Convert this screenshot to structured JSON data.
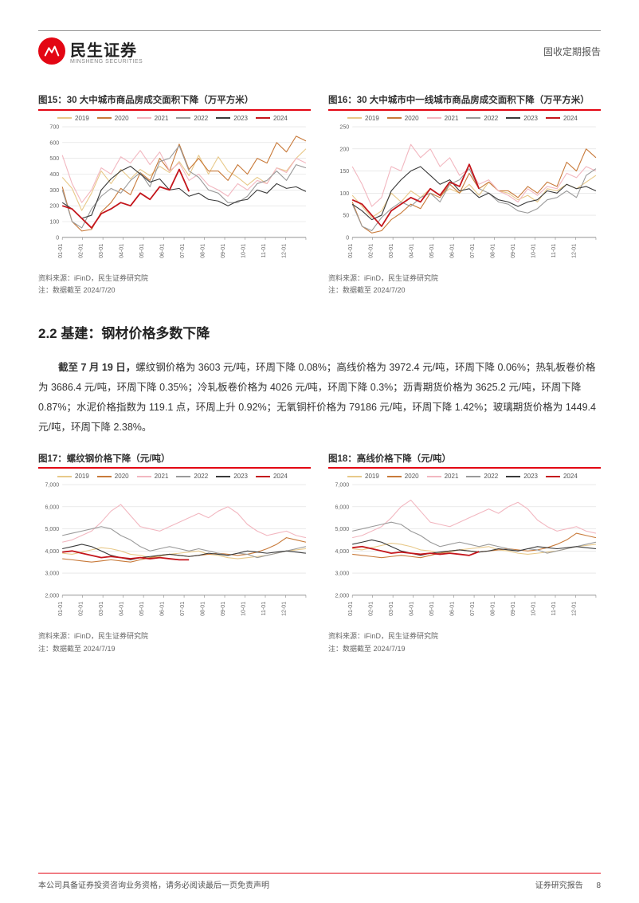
{
  "header": {
    "brand_cn": "民生证券",
    "brand_en": "MINSHENG SECURITIES",
    "doc_type": "固收定期报告"
  },
  "series_meta": {
    "years": [
      "2019",
      "2020",
      "2021",
      "2022",
      "2023",
      "2024"
    ],
    "colors": {
      "2019": "#e8c98a",
      "2020": "#c87a3a",
      "2021": "#f2b7c0",
      "2022": "#9a9a9a",
      "2023": "#3a3a3a",
      "2024": "#c4161c"
    }
  },
  "chart15": {
    "title": "图15：30 大中城市商品房成交面积下降（万平方米）",
    "type": "line",
    "source": "资料来源：iFinD，民生证券研究院",
    "note": "注：数据截至 2024/7/20",
    "ylim": [
      0,
      700
    ],
    "ytick_step": 100,
    "x_labels": [
      "01-01",
      "02-01",
      "03-01",
      "04-01",
      "05-01",
      "06-01",
      "07-01",
      "08-01",
      "09-01",
      "10-01",
      "11-01",
      "12-01",
      ""
    ],
    "grid_color": "#dddddd",
    "axis_color": "#888888",
    "label_fontsize": 7,
    "data": {
      "2019": [
        380,
        310,
        170,
        280,
        420,
        340,
        430,
        370,
        430,
        390,
        450,
        410,
        480,
        390,
        520,
        400,
        510,
        420,
        380,
        330,
        380,
        340,
        440,
        420,
        500,
        560
      ],
      "2020": [
        320,
        100,
        40,
        50,
        160,
        220,
        310,
        270,
        410,
        360,
        500,
        420,
        590,
        430,
        500,
        420,
        420,
        360,
        460,
        400,
        500,
        470,
        600,
        540,
        640,
        610
      ],
      "2021": [
        520,
        340,
        220,
        300,
        440,
        400,
        510,
        470,
        550,
        460,
        540,
        420,
        470,
        360,
        400,
        330,
        300,
        260,
        340,
        300,
        360,
        340,
        440,
        410,
        500,
        470
      ],
      "2022": [
        300,
        100,
        60,
        180,
        260,
        310,
        280,
        360,
        410,
        320,
        480,
        500,
        580,
        420,
        380,
        300,
        280,
        220,
        220,
        260,
        340,
        360,
        420,
        360,
        460,
        440
      ],
      "2023": [
        220,
        180,
        120,
        140,
        300,
        370,
        420,
        450,
        400,
        350,
        370,
        300,
        310,
        260,
        280,
        240,
        230,
        200,
        230,
        240,
        300,
        280,
        340,
        310,
        320,
        290
      ],
      "2024": [
        200,
        180,
        120,
        60,
        150,
        180,
        220,
        200,
        280,
        240,
        320,
        300,
        430,
        290
      ]
    }
  },
  "chart16": {
    "title": "图16：30 大中城市中一线城市商品房成交面积下降（万平方米）",
    "type": "line",
    "source": "资料来源：iFinD，民生证券研究院",
    "note": "注：数据截至 2024/7/20",
    "ylim": [
      0,
      250
    ],
    "ytick_step": 50,
    "x_labels": [
      "01-01",
      "02-01",
      "03-01",
      "04-01",
      "05-01",
      "06-01",
      "07-01",
      "08-01",
      "09-01",
      "10-01",
      "11-01",
      "12-01",
      ""
    ],
    "grid_color": "#dddddd",
    "axis_color": "#888888",
    "label_fontsize": 7,
    "data": {
      "2019": [
        95,
        70,
        45,
        60,
        100,
        80,
        105,
        90,
        110,
        95,
        110,
        100,
        120,
        95,
        125,
        105,
        100,
        85,
        95,
        80,
        110,
        105,
        120,
        110,
        125,
        140
      ],
      "2020": [
        80,
        25,
        10,
        15,
        40,
        55,
        75,
        65,
        100,
        90,
        120,
        100,
        145,
        110,
        125,
        105,
        105,
        90,
        115,
        100,
        125,
        115,
        170,
        150,
        200,
        180
      ],
      "2021": [
        160,
        120,
        70,
        90,
        160,
        150,
        210,
        180,
        200,
        160,
        180,
        140,
        155,
        120,
        130,
        105,
        95,
        80,
        110,
        95,
        115,
        110,
        145,
        135,
        160,
        150
      ],
      "2022": [
        75,
        25,
        15,
        45,
        65,
        80,
        70,
        90,
        100,
        80,
        120,
        130,
        155,
        110,
        100,
        80,
        75,
        60,
        55,
        65,
        85,
        90,
        105,
        90,
        140,
        155
      ],
      "2023": [
        75,
        60,
        40,
        50,
        105,
        130,
        150,
        160,
        140,
        120,
        130,
        105,
        110,
        90,
        100,
        85,
        80,
        70,
        80,
        85,
        105,
        100,
        120,
        110,
        115,
        105
      ],
      "2024": [
        85,
        75,
        50,
        25,
        60,
        75,
        90,
        80,
        110,
        95,
        125,
        115,
        165,
        110
      ]
    }
  },
  "section": {
    "heading": "2.2 基建：钢材价格多数下降",
    "para_bold": "截至 7 月 19 日，",
    "para_rest": "螺纹钢价格为 3603 元/吨，环周下降 0.08%；高线价格为 3972.4 元/吨，环周下降 0.06%；热轧板卷价格为 3686.4 元/吨，环周下降 0.35%；冷轧板卷价格为 4026 元/吨，环周下降 0.3%；沥青期货价格为 3625.2 元/吨，环周下降 0.87%；水泥价格指数为 119.1 点，环周上升 0.92%；无氧铜杆价格为 79186 元/吨，环周下降 1.42%；玻璃期货价格为 1449.4 元/吨，环周下降 2.38%。"
  },
  "chart17": {
    "title": "图17：螺纹钢价格下降（元/吨）",
    "type": "line",
    "source": "资料来源：iFinD，民生证券研究院",
    "note": "注：数据截至 2024/7/19",
    "ylim": [
      2000,
      7000
    ],
    "ytick_step": 1000,
    "x_labels": [
      "01-01",
      "02-01",
      "03-01",
      "04-01",
      "05-01",
      "06-01",
      "07-01",
      "08-01",
      "09-01",
      "10-01",
      "11-01",
      "12-01",
      ""
    ],
    "grid_color": "#dddddd",
    "axis_color": "#888888",
    "label_fontsize": 7,
    "data": {
      "2019": [
        3900,
        3850,
        3950,
        4050,
        4150,
        4100,
        4000,
        3850,
        3800,
        3700,
        3750,
        3850,
        3900,
        3950,
        4000,
        3850,
        3800,
        3700,
        3650,
        3700,
        3750,
        3800,
        3900,
        4000,
        4050,
        4100
      ],
      "2020": [
        3650,
        3600,
        3550,
        3500,
        3550,
        3600,
        3550,
        3500,
        3600,
        3700,
        3800,
        3850,
        3800,
        3750,
        3800,
        3850,
        3900,
        3850,
        3800,
        3850,
        3950,
        4100,
        4300,
        4600,
        4500,
        4400
      ],
      "2021": [
        4400,
        4500,
        4700,
        4900,
        5300,
        5800,
        6100,
        5600,
        5100,
        5000,
        4900,
        5100,
        5300,
        5500,
        5700,
        5500,
        5800,
        6000,
        5700,
        5200,
        4900,
        4700,
        4800,
        4900,
        4700,
        4600
      ],
      "2022": [
        4700,
        4800,
        4900,
        5000,
        5100,
        5000,
        4700,
        4500,
        4200,
        4000,
        4100,
        4200,
        4100,
        4000,
        4100,
        4000,
        3900,
        3800,
        3900,
        3850,
        3700,
        3800,
        3900,
        4000,
        4100,
        4200
      ],
      "2023": [
        4100,
        4200,
        4300,
        4200,
        4000,
        3800,
        3700,
        3600,
        3700,
        3750,
        3800,
        3850,
        3800,
        3750,
        3800,
        3900,
        3850,
        3800,
        3900,
        4000,
        3950,
        3900,
        3950,
        4000,
        3950,
        3900
      ],
      "2024": [
        3950,
        4000,
        3900,
        3800,
        3700,
        3750,
        3700,
        3650,
        3700,
        3650,
        3700,
        3650,
        3600,
        3600
      ]
    }
  },
  "chart18": {
    "title": "图18：高线价格下降（元/吨）",
    "type": "line",
    "source": "资料来源：iFinD，民生证券研究院",
    "note": "注：数据截至 2024/7/19",
    "ylim": [
      2000,
      7000
    ],
    "ytick_step": 1000,
    "x_labels": [
      "01-01",
      "02-01",
      "03-01",
      "04-01",
      "05-01",
      "06-01",
      "07-01",
      "08-01",
      "09-01",
      "10-01",
      "11-01",
      "12-01",
      ""
    ],
    "grid_color": "#dddddd",
    "axis_color": "#888888",
    "label_fontsize": 7,
    "data": {
      "2019": [
        4100,
        4050,
        4150,
        4250,
        4350,
        4300,
        4200,
        4050,
        4000,
        3900,
        3950,
        4050,
        4100,
        4150,
        4200,
        4050,
        4000,
        3900,
        3850,
        3900,
        3950,
        4000,
        4100,
        4200,
        4250,
        4300
      ],
      "2020": [
        3850,
        3800,
        3750,
        3700,
        3750,
        3800,
        3750,
        3700,
        3800,
        3900,
        4000,
        4050,
        4000,
        3950,
        4000,
        4050,
        4100,
        4050,
        4000,
        4050,
        4150,
        4300,
        4500,
        4800,
        4700,
        4600
      ],
      "2021": [
        4600,
        4700,
        4900,
        5100,
        5500,
        6000,
        6300,
        5800,
        5300,
        5200,
        5100,
        5300,
        5500,
        5700,
        5900,
        5700,
        6000,
        6200,
        5900,
        5400,
        5100,
        4900,
        5000,
        5100,
        4900,
        4800
      ],
      "2022": [
        4900,
        5000,
        5100,
        5200,
        5300,
        5200,
        4900,
        4700,
        4400,
        4200,
        4300,
        4400,
        4300,
        4200,
        4300,
        4200,
        4100,
        4000,
        4100,
        4050,
        3900,
        4000,
        4100,
        4200,
        4300,
        4400
      ],
      "2023": [
        4300,
        4400,
        4500,
        4400,
        4200,
        4000,
        3900,
        3800,
        3900,
        3950,
        4000,
        4050,
        4000,
        3950,
        4000,
        4100,
        4050,
        4000,
        4100,
        4200,
        4150,
        4100,
        4150,
        4200,
        4150,
        4100
      ],
      "2024": [
        4150,
        4200,
        4100,
        4000,
        3900,
        3950,
        3900,
        3850,
        3900,
        3850,
        3900,
        3850,
        3800,
        3970
      ]
    }
  },
  "footer": {
    "left": "本公司具备证券投资咨询业务资格，请务必阅读最后一页免责声明",
    "right_label": "证券研究报告",
    "page": "8"
  }
}
